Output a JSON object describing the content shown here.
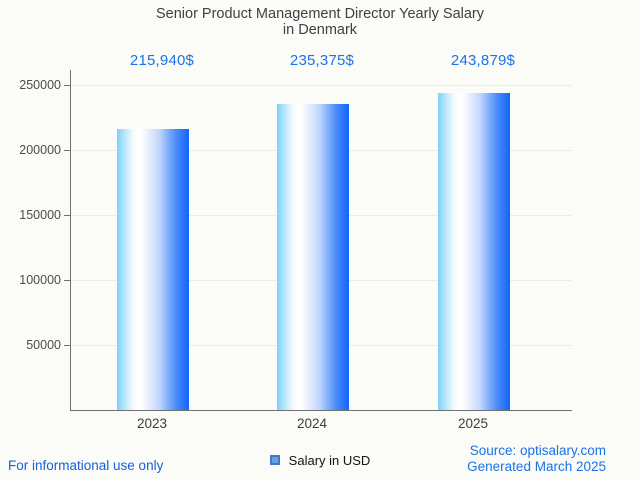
{
  "title": {
    "line1": "Senior Product Management Director Yearly Salary",
    "line2": "in Denmark"
  },
  "chart_data": {
    "type": "bar",
    "title": "Senior Product Management Director Yearly Salary in Denmark",
    "categories": [
      "2023",
      "2024",
      "2025"
    ],
    "values": [
      215940,
      235375,
      243879
    ],
    "value_labels": [
      "215,940$",
      "235,375$",
      "243,879$"
    ],
    "series_name": "Salary in USD",
    "xlabel": "",
    "ylabel": "",
    "ylim": [
      0,
      261538
    ],
    "yticks": [
      50000,
      100000,
      150000,
      200000,
      250000
    ],
    "ytick_labels": [
      "50000",
      "100000",
      "150000",
      "200000",
      "250000"
    ],
    "grid": true,
    "legend_position": "bottom"
  },
  "legend": {
    "label": "Salary in USD"
  },
  "footer": {
    "left": "For informational use only",
    "source": "Source: optisalary.com",
    "generated": "Generated March 2025"
  },
  "colors": {
    "accent_blue": "#1a73e8",
    "title_gray": "#3e4245",
    "bar_edge_light": "#7ed1f8",
    "bar_mid": "#ffffff",
    "bar_edge_dark": "#1064fa",
    "legend_fill": "#68a1e2",
    "legend_border": "#4577c9",
    "axis_gray": "#6f6f6f",
    "gridline_gray": "#ebebe8",
    "background": "#fbfbf8"
  }
}
